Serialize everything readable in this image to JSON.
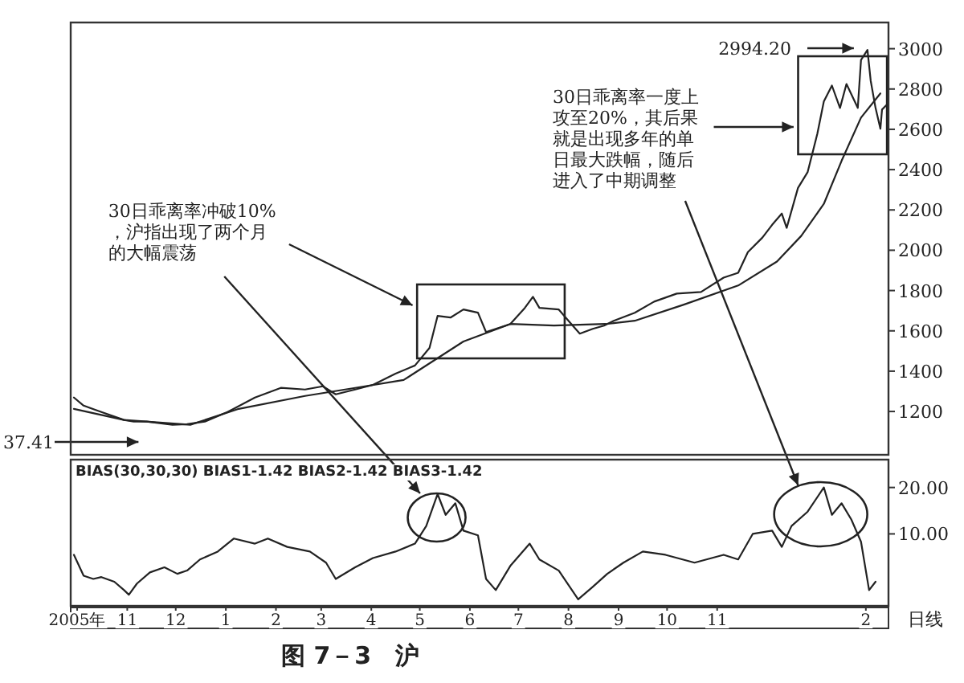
{
  "chart_data": [
    {
      "type": "line",
      "xlim": [
        "2005-09-27",
        "2007-02-15"
      ],
      "ylim": [
        985,
        3130
      ],
      "yticks": [
        1200,
        1400,
        1600,
        1800,
        2000,
        2200,
        2400,
        2600,
        2800,
        3000
      ],
      "tick_labels": "y",
      "grid": false,
      "series": [
        {
          "color": "#222222",
          "x": [
            "2005-09-29",
            "2005-10-05",
            "2005-10-16",
            "2005-10-30",
            "2005-11-05",
            "2005-11-13",
            "2005-11-29",
            "2005-12-08",
            "2005-12-19",
            "2006-01-02",
            "2006-01-19",
            "2006-02-04",
            "2006-02-19",
            "2006-03-02",
            "2006-03-10",
            "2006-03-22",
            "2006-04-02",
            "2006-04-16",
            "2006-04-28",
            "2006-05-07",
            "2006-05-12",
            "2006-05-20",
            "2006-05-28",
            "2006-06-06",
            "2006-06-11",
            "2006-06-17",
            "2006-06-26",
            "2006-07-05",
            "2006-07-10",
            "2006-07-14",
            "2006-07-26",
            "2006-08-01",
            "2006-08-08",
            "2006-08-16",
            "2006-08-23",
            "2006-08-29",
            "2006-09-11",
            "2006-09-23",
            "2006-10-07",
            "2006-10-22",
            "2006-11-05",
            "2006-11-14",
            "2006-11-20",
            "2006-11-29",
            "2006-12-05",
            "2006-12-11",
            "2006-12-14",
            "2006-12-21",
            "2006-12-27",
            "2007-01-02",
            "2007-01-06",
            "2007-01-11",
            "2007-01-16",
            "2007-01-20",
            "2007-01-27",
            "2007-01-29",
            "2007-02-02",
            "2007-02-04",
            "2007-02-07",
            "2007-02-10",
            "2007-02-11",
            "2007-02-14"
          ],
          "values": [
            1269,
            1229,
            1197,
            1158,
            1150,
            1150,
            1134,
            1137,
            1150,
            1197,
            1269,
            1317,
            1309,
            1325,
            1285,
            1309,
            1332,
            1388,
            1428,
            1515,
            1674,
            1666,
            1706,
            1690,
            1594,
            1610,
            1634,
            1714,
            1769,
            1714,
            1706,
            1650,
            1586,
            1610,
            1626,
            1650,
            1690,
            1745,
            1785,
            1793,
            1864,
            1888,
            1991,
            2063,
            2126,
            2182,
            2111,
            2309,
            2388,
            2579,
            2738,
            2817,
            2706,
            2825,
            2706,
            2944,
            2994,
            2841,
            2706,
            2603,
            2698,
            2722
          ]
        },
        {
          "color": "#222222",
          "x": [
            "2005-09-29",
            "2005-10-30",
            "2005-12-10",
            "2006-01-09",
            "2006-02-19",
            "2006-03-22",
            "2006-04-21",
            "2006-05-28",
            "2006-06-26",
            "2006-07-23",
            "2006-08-24",
            "2006-09-11",
            "2006-10-11",
            "2006-11-14",
            "2006-12-08",
            "2006-12-23",
            "2007-01-06",
            "2007-01-17",
            "2007-01-29",
            "2007-02-10"
          ],
          "values": [
            1213,
            1158,
            1134,
            1213,
            1277,
            1317,
            1356,
            1547,
            1634,
            1626,
            1634,
            1650,
            1729,
            1825,
            1944,
            2071,
            2230,
            2444,
            2658,
            2778
          ]
        }
      ],
      "annotations": [
        "30日乖离率冲破10%，沪指出现了两个月的大幅震荡",
        "30日乖离率一度上攻至20%，其后果就是出现多年的单日最大跌幅，随后进入了中期调整",
        "2994.20",
        "37.41"
      ]
    },
    {
      "type": "line",
      "title": "BIAS(30,30,30) BIAS1-1.42 BIAS2-1.42 BIAS3-1.42",
      "xlim": [
        "2005-09-27",
        "2007-02-15"
      ],
      "ylim": [
        -5.5,
        26
      ],
      "yticks": [
        {
          "value": 10,
          "label": "10.00"
        },
        {
          "value": 20,
          "label": "20.00"
        }
      ],
      "xticks": [
        {
          "value": "2005-10-01",
          "label": "2005年"
        },
        {
          "value": "2005-11-01",
          "label": "11"
        },
        {
          "value": "2005-12-01",
          "label": "12"
        },
        {
          "value": "2006-01-01",
          "label": "1"
        },
        {
          "value": "2006-02-01",
          "label": "2"
        },
        {
          "value": "2006-03-01",
          "label": "3"
        },
        {
          "value": "2006-04-01",
          "label": "4"
        },
        {
          "value": "2006-05-01",
          "label": "5"
        },
        {
          "value": "2006-06-01",
          "label": "6"
        },
        {
          "value": "2006-07-01",
          "label": "7"
        },
        {
          "value": "2006-08-01",
          "label": "8"
        },
        {
          "value": "2006-09-01",
          "label": "9"
        },
        {
          "value": "2006-10-01",
          "label": "10"
        },
        {
          "value": "2006-11-01",
          "label": "11"
        },
        {
          "value": "2007-02-01",
          "label": "2"
        }
      ],
      "grid": false,
      "series": [
        {
          "color": "#222222",
          "x": [
            "2005-09-29",
            "2005-10-05",
            "2005-10-11",
            "2005-10-16",
            "2005-10-24",
            "2005-10-30",
            "2005-11-02",
            "2005-11-07",
            "2005-11-15",
            "2005-11-24",
            "2005-12-02",
            "2005-12-08",
            "2005-12-16",
            "2005-12-27",
            "2006-01-06",
            "2006-01-19",
            "2006-01-27",
            "2006-02-08",
            "2006-02-22",
            "2006-03-04",
            "2006-03-10",
            "2006-03-22",
            "2006-04-02",
            "2006-04-16",
            "2006-04-28",
            "2006-05-05",
            "2006-05-12",
            "2006-05-17",
            "2006-05-23",
            "2006-05-28",
            "2006-06-06",
            "2006-06-11",
            "2006-06-17",
            "2006-06-26",
            "2006-07-08",
            "2006-07-14",
            "2006-07-26",
            "2006-08-07",
            "2006-08-16",
            "2006-08-25",
            "2006-09-04",
            "2006-09-16",
            "2006-09-30",
            "2006-10-18",
            "2006-11-05",
            "2006-11-14",
            "2006-11-23",
            "2006-12-05",
            "2006-12-11",
            "2006-12-17",
            "2006-12-27",
            "2007-01-06",
            "2007-01-11",
            "2007-01-17",
            "2007-01-23",
            "2007-01-29",
            "2007-02-03",
            "2007-02-07"
          ],
          "values": [
            5.5,
            1.0,
            0.3,
            0.7,
            -0.3,
            -2.1,
            -3.1,
            -0.7,
            1.7,
            2.8,
            1.4,
            2.1,
            4.5,
            6.2,
            9.0,
            7.9,
            9.0,
            7.2,
            6.2,
            3.8,
            0.3,
            2.8,
            4.8,
            6.2,
            7.9,
            11.7,
            18.6,
            14.1,
            16.6,
            10.7,
            9.7,
            0.3,
            -2.1,
            3.1,
            7.9,
            4.5,
            2.1,
            -4.1,
            -1.4,
            1.4,
            3.8,
            6.2,
            5.5,
            3.8,
            5.5,
            4.5,
            10,
            10.7,
            7.2,
            11.7,
            14.8,
            20,
            14.1,
            16.6,
            13.1,
            8.3,
            -2.1,
            -0.3
          ]
        }
      ],
      "annotations": [
        "日线",
        "图 7－3　沪"
      ]
    }
  ]
}
